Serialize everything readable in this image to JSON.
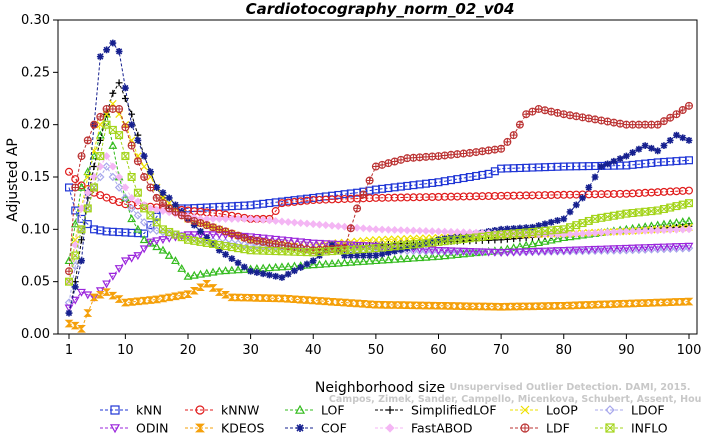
{
  "chart_data": {
    "type": "line",
    "title": "Cardiotocography_norm_02_v04",
    "xlabel": "Neighborhood size",
    "ylabel": "Adjusted AP",
    "xlim": [
      1,
      100
    ],
    "ylim": [
      0,
      0.3
    ],
    "xticks": [
      1,
      10,
      20,
      30,
      40,
      50,
      60,
      70,
      80,
      90,
      100
    ],
    "yticks": [
      "0.00",
      "0.05",
      "0.10",
      "0.15",
      "0.20",
      "0.25",
      "0.30"
    ],
    "watermark": [
      "Campos, Zimek, Sander, Campello, Micenkova, Schubert, Assent, Houle",
      "Unsupervised Outlier Detection. DAMI, 2015."
    ],
    "series": [
      {
        "name": "kNN",
        "color": "#1f35d6",
        "marker": "square",
        "points": [
          [
            1,
            0.14
          ],
          [
            2,
            0.118
          ],
          [
            3,
            0.11
          ],
          [
            5,
            0.1
          ],
          [
            7,
            0.098
          ],
          [
            10,
            0.097
          ],
          [
            13,
            0.096
          ],
          [
            16,
            0.12
          ],
          [
            20,
            0.12
          ],
          [
            30,
            0.123
          ],
          [
            40,
            0.13
          ],
          [
            47,
            0.135
          ],
          [
            50,
            0.138
          ],
          [
            60,
            0.145
          ],
          [
            65,
            0.15
          ],
          [
            68,
            0.153
          ],
          [
            70,
            0.158
          ],
          [
            80,
            0.16
          ],
          [
            90,
            0.161
          ],
          [
            95,
            0.164
          ],
          [
            100,
            0.166
          ]
        ]
      },
      {
        "name": "kNNW",
        "color": "#e01b1b",
        "marker": "circle",
        "points": [
          [
            1,
            0.155
          ],
          [
            2,
            0.148
          ],
          [
            3,
            0.142
          ],
          [
            5,
            0.135
          ],
          [
            8,
            0.128
          ],
          [
            10,
            0.124
          ],
          [
            15,
            0.121
          ],
          [
            20,
            0.118
          ],
          [
            25,
            0.115
          ],
          [
            30,
            0.11
          ],
          [
            33,
            0.11
          ],
          [
            35,
            0.125
          ],
          [
            40,
            0.128
          ],
          [
            50,
            0.13
          ],
          [
            60,
            0.131
          ],
          [
            70,
            0.132
          ],
          [
            80,
            0.133
          ],
          [
            90,
            0.134
          ],
          [
            100,
            0.137
          ]
        ]
      },
      {
        "name": "LOF",
        "color": "#33bb1d",
        "marker": "triangle",
        "points": [
          [
            1,
            0.07
          ],
          [
            3,
            0.14
          ],
          [
            5,
            0.17
          ],
          [
            7,
            0.21
          ],
          [
            9,
            0.15
          ],
          [
            11,
            0.11
          ],
          [
            13,
            0.09
          ],
          [
            16,
            0.08
          ],
          [
            18,
            0.07
          ],
          [
            20,
            0.055
          ],
          [
            25,
            0.06
          ],
          [
            30,
            0.062
          ],
          [
            40,
            0.066
          ],
          [
            50,
            0.07
          ],
          [
            60,
            0.074
          ],
          [
            70,
            0.08
          ],
          [
            80,
            0.092
          ],
          [
            90,
            0.1
          ],
          [
            100,
            0.108
          ]
        ]
      },
      {
        "name": "SimplifiedLOF",
        "color": "#000000",
        "marker": "plus",
        "points": [
          [
            1,
            0.02
          ],
          [
            2,
            0.05
          ],
          [
            3,
            0.09
          ],
          [
            4,
            0.13
          ],
          [
            5,
            0.16
          ],
          [
            7,
            0.21
          ],
          [
            8,
            0.23
          ],
          [
            9,
            0.24
          ],
          [
            11,
            0.21
          ],
          [
            13,
            0.17
          ],
          [
            15,
            0.14
          ],
          [
            17,
            0.12
          ],
          [
            20,
            0.11
          ],
          [
            25,
            0.1
          ],
          [
            30,
            0.09
          ],
          [
            35,
            0.085
          ],
          [
            40,
            0.08
          ],
          [
            45,
            0.083
          ],
          [
            50,
            0.085
          ],
          [
            60,
            0.088
          ],
          [
            70,
            0.09
          ],
          [
            80,
            0.095
          ],
          [
            90,
            0.098
          ],
          [
            100,
            0.103
          ]
        ]
      },
      {
        "name": "LoOP",
        "color": "#eee000",
        "marker": "cross",
        "points": [
          [
            1,
            0.05
          ],
          [
            2,
            0.09
          ],
          [
            4,
            0.15
          ],
          [
            6,
            0.2
          ],
          [
            8,
            0.22
          ],
          [
            10,
            0.2
          ],
          [
            12,
            0.17
          ],
          [
            14,
            0.15
          ],
          [
            16,
            0.13
          ],
          [
            20,
            0.11
          ],
          [
            25,
            0.1
          ],
          [
            30,
            0.09
          ],
          [
            40,
            0.085
          ],
          [
            50,
            0.09
          ],
          [
            60,
            0.092
          ],
          [
            70,
            0.094
          ],
          [
            80,
            0.096
          ],
          [
            90,
            0.098
          ],
          [
            100,
            0.102
          ]
        ]
      },
      {
        "name": "LDOF",
        "color": "#a8a8ec",
        "marker": "diamond",
        "points": [
          [
            1,
            0.03
          ],
          [
            3,
            0.1
          ],
          [
            5,
            0.14
          ],
          [
            7,
            0.16
          ],
          [
            9,
            0.14
          ],
          [
            11,
            0.12
          ],
          [
            14,
            0.1
          ],
          [
            18,
            0.095
          ],
          [
            22,
            0.09
          ],
          [
            30,
            0.085
          ],
          [
            40,
            0.082
          ],
          [
            50,
            0.08
          ],
          [
            60,
            0.079
          ],
          [
            70,
            0.078
          ],
          [
            80,
            0.079
          ],
          [
            90,
            0.08
          ],
          [
            100,
            0.082
          ]
        ]
      },
      {
        "name": "ODIN",
        "color": "#9b26dc",
        "marker": "triangle-down",
        "points": [
          [
            1,
            0.025
          ],
          [
            3,
            0.04
          ],
          [
            5,
            0.035
          ],
          [
            7,
            0.048
          ],
          [
            10,
            0.07
          ],
          [
            12,
            0.075
          ],
          [
            14,
            0.088
          ],
          [
            20,
            0.095
          ],
          [
            25,
            0.095
          ],
          [
            30,
            0.093
          ],
          [
            35,
            0.09
          ],
          [
            40,
            0.087
          ],
          [
            50,
            0.084
          ],
          [
            60,
            0.08
          ],
          [
            70,
            0.078
          ],
          [
            80,
            0.08
          ],
          [
            90,
            0.082
          ],
          [
            100,
            0.084
          ]
        ]
      },
      {
        "name": "KDEOS",
        "color": "#f5a00a",
        "marker": "hourglass",
        "points": [
          [
            1,
            0.01
          ],
          [
            2,
            0.008
          ],
          [
            3,
            0.005
          ],
          [
            5,
            0.035
          ],
          [
            7,
            0.04
          ],
          [
            10,
            0.03
          ],
          [
            15,
            0.033
          ],
          [
            20,
            0.038
          ],
          [
            23,
            0.048
          ],
          [
            25,
            0.04
          ],
          [
            27,
            0.035
          ],
          [
            35,
            0.034
          ],
          [
            40,
            0.032
          ],
          [
            50,
            0.028
          ],
          [
            60,
            0.027
          ],
          [
            70,
            0.026
          ],
          [
            80,
            0.027
          ],
          [
            90,
            0.029
          ],
          [
            100,
            0.031
          ]
        ]
      },
      {
        "name": "COF",
        "color": "#16208f",
        "marker": "star",
        "points": [
          [
            1,
            0.02
          ],
          [
            3,
            0.07
          ],
          [
            5,
            0.2
          ],
          [
            6,
            0.265
          ],
          [
            8,
            0.278
          ],
          [
            9,
            0.27
          ],
          [
            11,
            0.2
          ],
          [
            13,
            0.17
          ],
          [
            15,
            0.14
          ],
          [
            17,
            0.13
          ],
          [
            20,
            0.11
          ],
          [
            25,
            0.08
          ],
          [
            30,
            0.06
          ],
          [
            35,
            0.054
          ],
          [
            40,
            0.07
          ],
          [
            43,
            0.085
          ],
          [
            45,
            0.075
          ],
          [
            50,
            0.075
          ],
          [
            55,
            0.082
          ],
          [
            60,
            0.09
          ],
          [
            65,
            0.095
          ],
          [
            70,
            0.1
          ],
          [
            75,
            0.102
          ],
          [
            80,
            0.11
          ],
          [
            83,
            0.13
          ],
          [
            86,
            0.16
          ],
          [
            90,
            0.17
          ],
          [
            93,
            0.18
          ],
          [
            95,
            0.175
          ],
          [
            98,
            0.19
          ],
          [
            100,
            0.185
          ]
        ]
      },
      {
        "name": "FastABOD",
        "color": "#f4b6f4",
        "marker": "diamond-filled",
        "points": [
          [
            1,
            0.05
          ],
          [
            3,
            0.12
          ],
          [
            5,
            0.15
          ],
          [
            7,
            0.17
          ],
          [
            9,
            0.15
          ],
          [
            11,
            0.13
          ],
          [
            14,
            0.12
          ],
          [
            18,
            0.115
          ],
          [
            22,
            0.11
          ],
          [
            30,
            0.11
          ],
          [
            40,
            0.105
          ],
          [
            50,
            0.1
          ],
          [
            60,
            0.098
          ],
          [
            70,
            0.096
          ],
          [
            80,
            0.095
          ],
          [
            90,
            0.098
          ],
          [
            100,
            0.1
          ]
        ]
      },
      {
        "name": "LDF",
        "color": "#bb3232",
        "marker": "circle-plus",
        "points": [
          [
            1,
            0.06
          ],
          [
            2,
            0.14
          ],
          [
            3,
            0.17
          ],
          [
            5,
            0.2
          ],
          [
            7,
            0.215
          ],
          [
            9,
            0.215
          ],
          [
            11,
            0.18
          ],
          [
            13,
            0.15
          ],
          [
            15,
            0.13
          ],
          [
            17,
            0.12
          ],
          [
            20,
            0.11
          ],
          [
            25,
            0.1
          ],
          [
            30,
            0.09
          ],
          [
            35,
            0.085
          ],
          [
            40,
            0.08
          ],
          [
            45,
            0.082
          ],
          [
            47,
            0.12
          ],
          [
            50,
            0.16
          ],
          [
            55,
            0.168
          ],
          [
            60,
            0.17
          ],
          [
            65,
            0.173
          ],
          [
            70,
            0.177
          ],
          [
            72,
            0.19
          ],
          [
            74,
            0.21
          ],
          [
            76,
            0.215
          ],
          [
            80,
            0.21
          ],
          [
            85,
            0.205
          ],
          [
            90,
            0.2
          ],
          [
            95,
            0.2
          ],
          [
            98,
            0.21
          ],
          [
            100,
            0.218
          ]
        ]
      },
      {
        "name": "INFLO",
        "color": "#a3d419",
        "marker": "square-x",
        "points": [
          [
            1,
            0.05
          ],
          [
            3,
            0.1
          ],
          [
            5,
            0.14
          ],
          [
            7,
            0.2
          ],
          [
            9,
            0.19
          ],
          [
            11,
            0.15
          ],
          [
            13,
            0.12
          ],
          [
            16,
            0.1
          ],
          [
            20,
            0.09
          ],
          [
            25,
            0.085
          ],
          [
            30,
            0.08
          ],
          [
            40,
            0.078
          ],
          [
            50,
            0.082
          ],
          [
            60,
            0.088
          ],
          [
            70,
            0.095
          ],
          [
            80,
            0.1
          ],
          [
            85,
            0.11
          ],
          [
            90,
            0.115
          ],
          [
            95,
            0.118
          ],
          [
            100,
            0.125
          ]
        ]
      }
    ]
  }
}
